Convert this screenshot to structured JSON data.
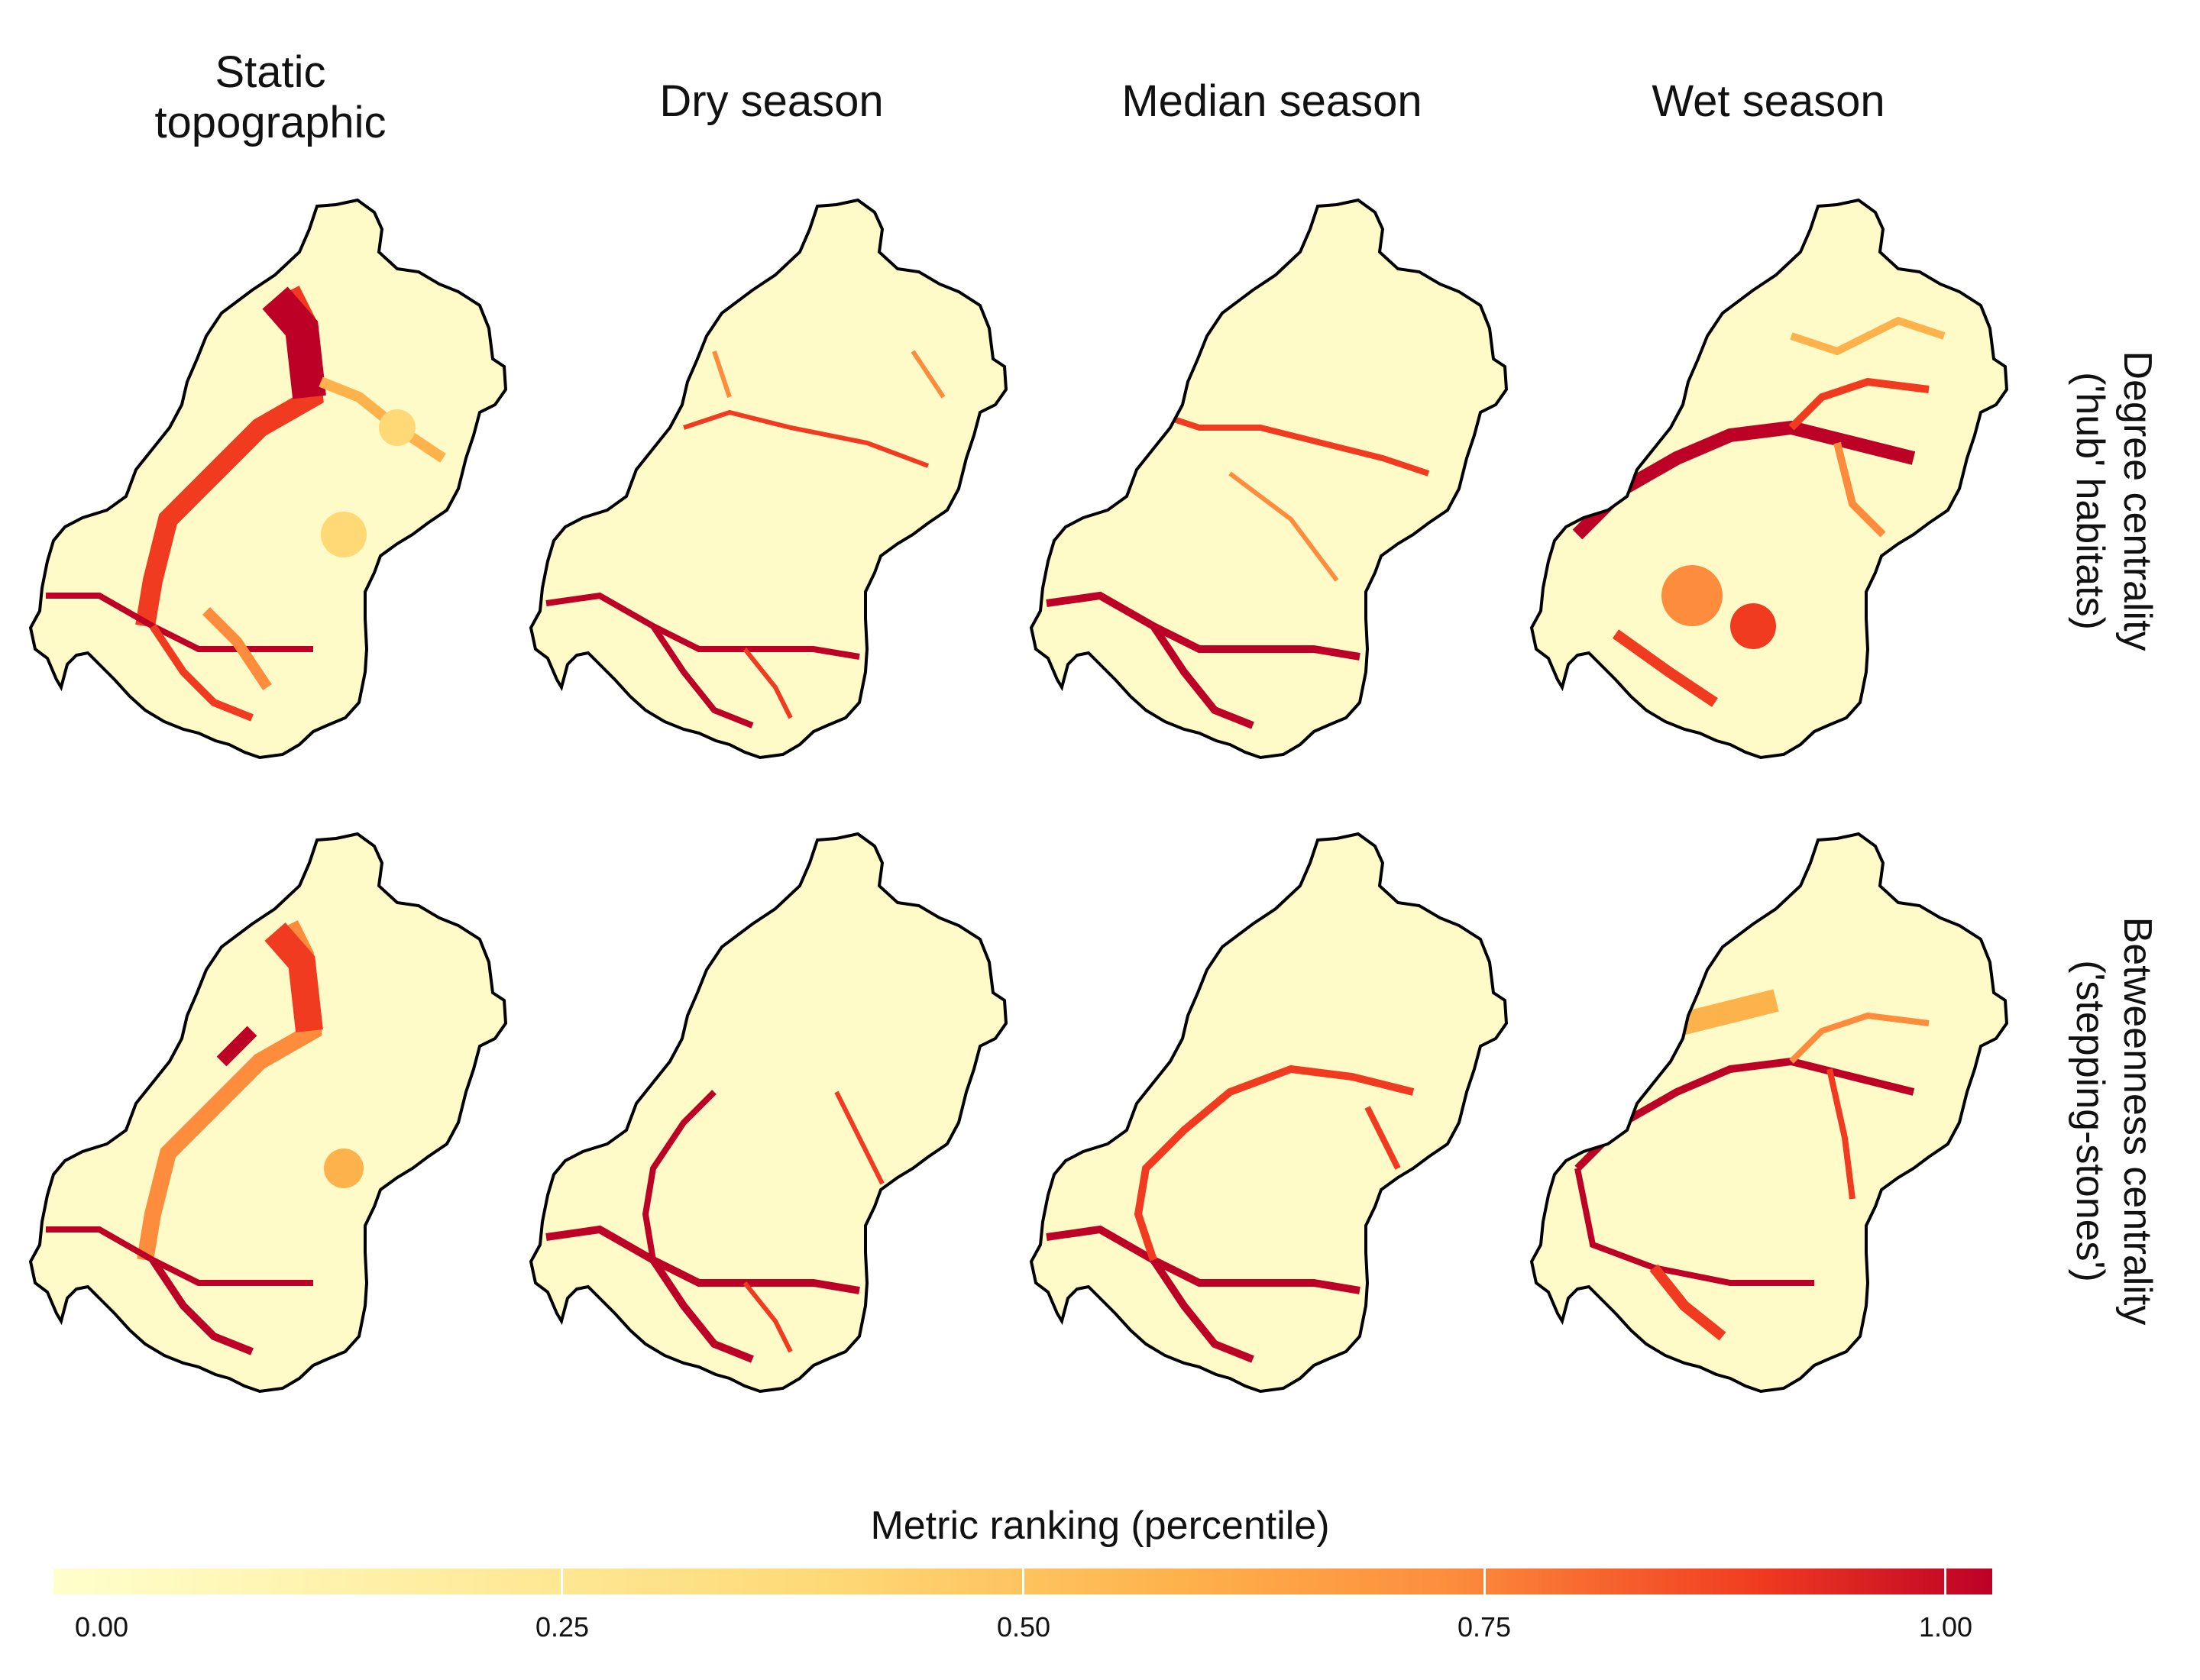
{
  "columns": [
    {
      "id": "static",
      "title": "Static\ntopographic"
    },
    {
      "id": "dry",
      "title": "Dry season"
    },
    {
      "id": "median",
      "title": "Median season"
    },
    {
      "id": "wet",
      "title": "Wet season"
    }
  ],
  "rows": [
    {
      "id": "degree",
      "title": "Degree centrality\n('hub' habitats)"
    },
    {
      "id": "betweenness",
      "title": "Betweenness centrality\n('stepping-stones')"
    }
  ],
  "legend": {
    "title": "Metric ranking (percentile)",
    "ticks": [
      "0.00",
      "0.25",
      "0.50",
      "0.75",
      "1.00"
    ],
    "range": [
      0,
      1
    ]
  },
  "colors": {
    "low": "#FFFFCC",
    "mid_low": "#FED976",
    "mid": "#FEB24C",
    "mid_high": "#FD8D3C",
    "high": "#F03B20",
    "max": "#BD0026",
    "outline": "#000000"
  }
}
